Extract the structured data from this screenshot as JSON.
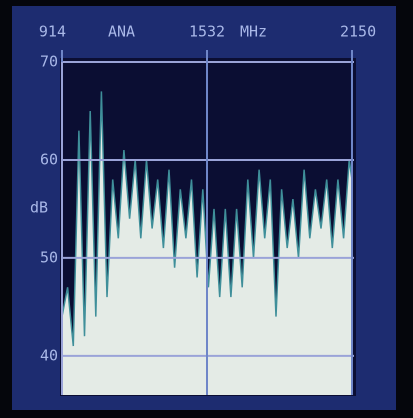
{
  "chart_data": {
    "type": "spectrum",
    "mode": "ANA",
    "x_label": "MHz",
    "y_label": "dB",
    "x": [
      914,
      938,
      962,
      986,
      1010,
      1034,
      1058,
      1082,
      1106,
      1130,
      1154,
      1178,
      1202,
      1226,
      1250,
      1274,
      1298,
      1322,
      1346,
      1370,
      1394,
      1418,
      1442,
      1466,
      1490,
      1514,
      1538,
      1562,
      1586,
      1610,
      1634,
      1658,
      1682,
      1706,
      1730,
      1754,
      1778,
      1802,
      1826,
      1850,
      1874,
      1898,
      1922,
      1946,
      1970,
      1994,
      2018,
      2042,
      2066,
      2090,
      2114,
      2138,
      2150
    ],
    "values": [
      44,
      47,
      41,
      63,
      42,
      65,
      44,
      67,
      46,
      58,
      52,
      61,
      54,
      60,
      52,
      60,
      53,
      58,
      51,
      59,
      49,
      57,
      52,
      58,
      48,
      57,
      47,
      55,
      46,
      55,
      46,
      55,
      47,
      58,
      50,
      59,
      52,
      58,
      44,
      57,
      51,
      56,
      50,
      59,
      52,
      57,
      53,
      58,
      51,
      58,
      52,
      60,
      58
    ],
    "color": "#e4ebe6",
    "line_color": "#3f8f9a",
    "xlim": [
      914,
      2150
    ],
    "xticks": [
      914,
      1532,
      2150
    ],
    "ylim": [
      36,
      70
    ],
    "yticks": [
      40,
      50,
      60,
      70
    ],
    "grid": true
  }
}
